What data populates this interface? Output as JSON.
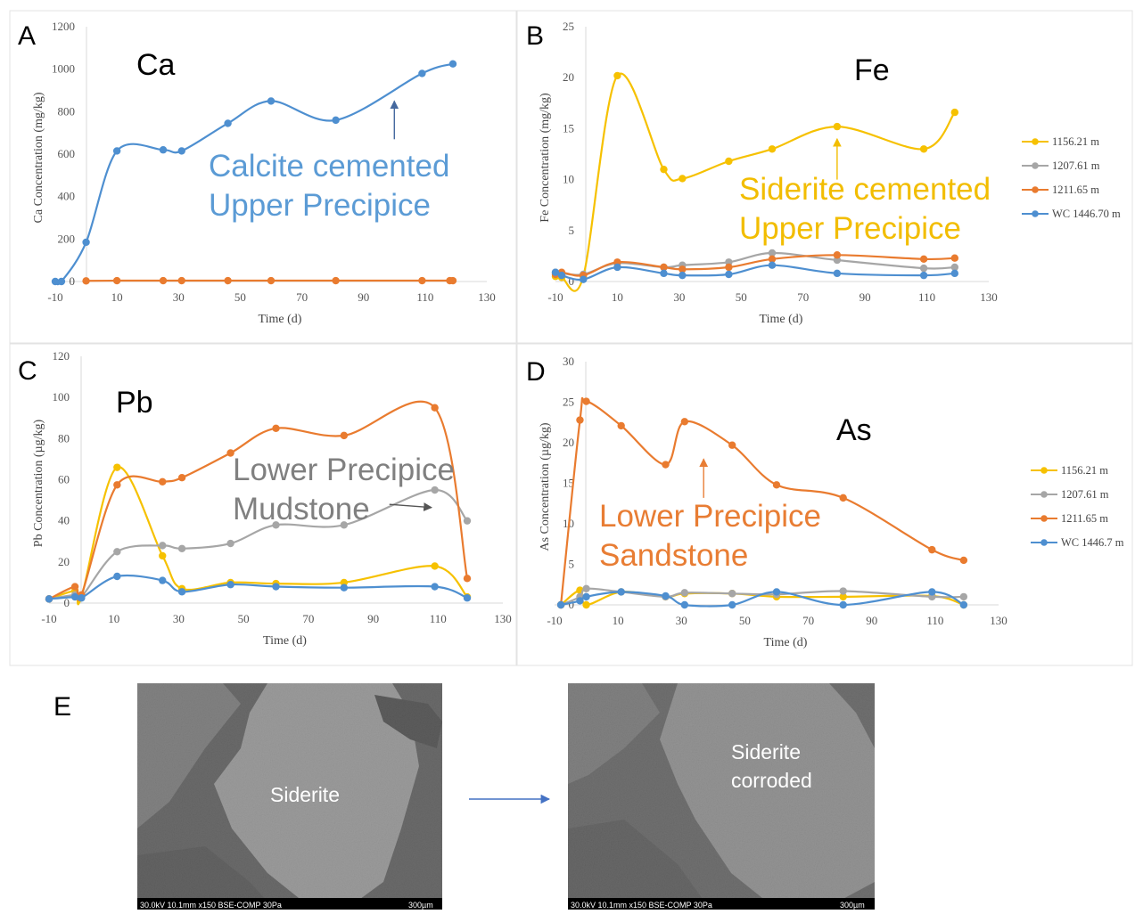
{
  "colors": {
    "yellow": "#f6c100",
    "gray": "#a6a6a6",
    "orange": "#e97b2f",
    "blue": "#4e8fd0",
    "calcite_text": "#5b9bd5",
    "siderite_text": "#f2bd00",
    "mudstone_text": "#808080",
    "sandstone_text": "#e87d34"
  },
  "chart_data": [
    {
      "panel": "A",
      "element": "Ca",
      "type": "line",
      "xlabel": "Time (d)",
      "ylabel": "Ca Concentration (mg/kg)",
      "xlim": [
        -10,
        130
      ],
      "ylim": [
        0,
        1200
      ],
      "xticks": [
        -10,
        10,
        30,
        50,
        70,
        90,
        110,
        130
      ],
      "yticks": [
        0,
        200,
        400,
        600,
        800,
        1000,
        1200
      ],
      "annotation": [
        "Calcite cemented",
        "Upper Precipice"
      ],
      "annotation_color": "calcite_text",
      "arrow": {
        "x": 100,
        "y_from": 670,
        "y_to": 850
      },
      "arrow_color": "#44689e",
      "series": [
        {
          "color": "blue",
          "x": [
            -10,
            -8,
            0,
            10,
            25,
            31,
            46,
            60,
            81,
            109,
            119
          ],
          "y": [
            0,
            0,
            185,
            615,
            620,
            615,
            745,
            850,
            760,
            980,
            1025
          ]
        },
        {
          "color": "orange",
          "x": [
            0,
            10,
            25,
            31,
            46,
            60,
            81,
            109,
            118,
            119
          ],
          "y": [
            3,
            4,
            4,
            4,
            4,
            4,
            4,
            4,
            4,
            4
          ]
        }
      ]
    },
    {
      "panel": "B",
      "element": "Fe",
      "type": "line",
      "xlabel": "Time (d)",
      "ylabel": "Fe Concentration (mg/kg)",
      "xlim": [
        -10,
        130
      ],
      "ylim": [
        0,
        25
      ],
      "xticks": [
        -10,
        10,
        30,
        50,
        70,
        90,
        110,
        130
      ],
      "yticks": [
        0,
        5,
        10,
        15,
        20,
        25
      ],
      "annotation": [
        "Siderite cemented",
        "Upper Precipice"
      ],
      "annotation_color": "siderite_text",
      "arrow": {
        "x": 81,
        "y_from": 10,
        "y_to": 14
      },
      "arrow_color": "#f2bd00",
      "series": [
        {
          "name": "1156.21 m",
          "color": "yellow",
          "x": [
            -10,
            -8,
            -1,
            10,
            25,
            31,
            46,
            60,
            81,
            109,
            119
          ],
          "y": [
            0.5,
            0.4,
            0.5,
            20.2,
            11,
            10.1,
            11.8,
            13,
            15.2,
            13,
            16.6
          ]
        },
        {
          "name": "1207.61 m",
          "color": "gray",
          "x": [
            -10,
            -8,
            -1,
            10,
            25,
            31,
            46,
            60,
            81,
            109,
            119
          ],
          "y": [
            0.9,
            0.8,
            0.7,
            1.8,
            1.4,
            1.6,
            1.9,
            2.8,
            2.1,
            1.3,
            1.4
          ]
        },
        {
          "name": "1211.65 m",
          "color": "orange",
          "x": [
            -10,
            -8,
            -1,
            10,
            25,
            31,
            46,
            60,
            81,
            109,
            119
          ],
          "y": [
            0.7,
            0.9,
            0.6,
            1.9,
            1.4,
            1.2,
            1.4,
            2.2,
            2.6,
            2.2,
            2.3
          ]
        },
        {
          "name": "WC 1446.70 m",
          "color": "blue",
          "x": [
            -10,
            -8,
            -1,
            10,
            25,
            31,
            46,
            60,
            81,
            109,
            119
          ],
          "y": [
            0.9,
            0.6,
            0.2,
            1.4,
            0.8,
            0.6,
            0.7,
            1.6,
            0.8,
            0.6,
            0.8
          ]
        }
      ]
    },
    {
      "panel": "C",
      "element": "Pb",
      "type": "line",
      "xlabel": "Time (d)",
      "ylabel": "Pb Concentration (µg/kg)",
      "xlim": [
        -10,
        130
      ],
      "ylim": [
        0,
        120
      ],
      "xticks": [
        -10,
        10,
        30,
        50,
        70,
        90,
        110,
        130
      ],
      "yticks": [
        0,
        20,
        40,
        60,
        80,
        100,
        120
      ],
      "annotation": [
        "Lower Precipice",
        "Mudstone"
      ],
      "annotation_color": "mudstone_text",
      "arrow": {
        "x1": 95,
        "y1": 48,
        "x2": 108,
        "y2": 46.5
      },
      "arrow_color": "#555555",
      "series": [
        {
          "color": "yellow",
          "x": [
            -10,
            -2,
            0,
            11,
            25,
            31,
            46,
            60,
            81,
            109,
            119
          ],
          "y": [
            2,
            6,
            3,
            66,
            23,
            7,
            10,
            9.5,
            10,
            18,
            3
          ]
        },
        {
          "color": "gray",
          "x": [
            -10,
            -2,
            0,
            11,
            25,
            31,
            46,
            60,
            81,
            109,
            119
          ],
          "y": [
            2,
            4,
            3,
            25,
            28,
            26.5,
            29,
            38,
            38,
            55,
            40
          ]
        },
        {
          "color": "orange",
          "x": [
            -10,
            -2,
            0,
            11,
            25,
            31,
            46,
            60,
            81,
            109,
            119
          ],
          "y": [
            2,
            8,
            4,
            57.5,
            59,
            61,
            73,
            85,
            81.5,
            95,
            12
          ]
        },
        {
          "color": "blue",
          "x": [
            -10,
            -2,
            0,
            11,
            25,
            31,
            46,
            60,
            81,
            109,
            119
          ],
          "y": [
            2,
            3,
            2.5,
            13,
            11,
            5.5,
            9,
            8,
            7.5,
            8,
            2.5
          ]
        }
      ]
    },
    {
      "panel": "D",
      "element": "As",
      "type": "line",
      "xlabel": "Time (d)",
      "ylabel": "As Concentration (µg/kg)",
      "xlim": [
        -10,
        130
      ],
      "ylim": [
        0,
        30
      ],
      "xticks": [
        -10,
        10,
        30,
        50,
        70,
        90,
        110,
        130
      ],
      "yticks": [
        0,
        5,
        10,
        15,
        20,
        25,
        30
      ],
      "annotation": [
        "Lower Precipice",
        "Sandstone"
      ],
      "annotation_color": "sandstone_text",
      "arrow": {
        "x": 37,
        "y_from": 13.2,
        "y_to": 18
      },
      "arrow_color": "#e87d34",
      "series": [
        {
          "name": "1156.21 m",
          "color": "yellow",
          "x": [
            -8,
            -2,
            0,
            11,
            25,
            31,
            46,
            60,
            81,
            109,
            119
          ],
          "y": [
            0,
            1.8,
            0,
            1.6,
            1,
            1.4,
            1.4,
            1,
            1,
            1.1,
            0
          ]
        },
        {
          "name": "1207.61 m",
          "color": "gray",
          "x": [
            -8,
            -2,
            0,
            11,
            25,
            31,
            46,
            60,
            81,
            109,
            119
          ],
          "y": [
            0,
            1,
            2,
            1.6,
            1,
            1.5,
            1.4,
            1.3,
            1.7,
            1,
            1
          ]
        },
        {
          "name": "1211.65 m",
          "color": "orange",
          "x": [
            -8,
            -2,
            0,
            11,
            25,
            31,
            46,
            60,
            81,
            109,
            119
          ],
          "y": [
            0,
            22.8,
            25.1,
            22.1,
            17.3,
            22.6,
            19.7,
            14.8,
            13.2,
            6.8,
            5.5
          ]
        },
        {
          "name": "WC 1446.7 m",
          "color": "blue",
          "x": [
            -8,
            -2,
            0,
            11,
            25,
            31,
            46,
            60,
            81,
            109,
            119
          ],
          "y": [
            0,
            0.5,
            1,
            1.6,
            1.1,
            0,
            0,
            1.6,
            0,
            1.6,
            0
          ]
        }
      ]
    }
  ],
  "panel_e": {
    "letter": "E",
    "left_image_label": "Siderite",
    "right_image_label": [
      "Siderite",
      "corroded"
    ],
    "sem_info": "30.0kV 10.1mm x150 BSE-COMP 30Pa",
    "scale_bar": "300µm"
  }
}
